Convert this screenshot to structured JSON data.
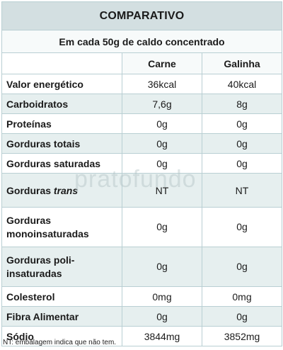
{
  "title": "COMPARATIVO",
  "subtitle": "Em cada 50g de caldo concentrado",
  "columns": [
    "Carne",
    "Galinha"
  ],
  "rows": [
    {
      "label": "Valor energético",
      "carne": "36kcal",
      "galinha": "40kcal"
    },
    {
      "label": "Carboidratos",
      "carne": "7,6g",
      "galinha": "8g"
    },
    {
      "label": "Proteínas",
      "carne": "0g",
      "galinha": "0g"
    },
    {
      "label": "Gorduras totais",
      "carne": "0g",
      "galinha": "0g"
    },
    {
      "label": "Gorduras saturadas",
      "carne": "0g",
      "galinha": "0g"
    },
    {
      "label": "Gorduras ",
      "label_em": "trans",
      "carne": "NT",
      "galinha": "NT"
    },
    {
      "label": "Gorduras monoinsaturadas",
      "carne": "0g",
      "galinha": "0g"
    },
    {
      "label": "Gorduras poli-insaturadas",
      "carne": "0g",
      "galinha": "0g"
    },
    {
      "label": "Colesterol",
      "carne": "0mg",
      "galinha": "0mg"
    },
    {
      "label": "Fibra Alimentar",
      "carne": "0g",
      "galinha": "0g"
    },
    {
      "label": "Sódio",
      "carne": "3844mg",
      "galinha": "3852mg"
    }
  ],
  "watermark": "pratofundo",
  "footnote": "NT: embalagem indica que não tem."
}
